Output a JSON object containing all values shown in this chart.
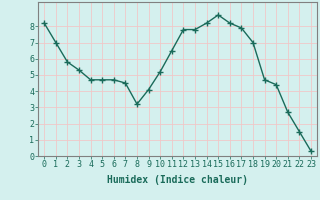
{
  "x": [
    0,
    1,
    2,
    3,
    4,
    5,
    6,
    7,
    8,
    9,
    10,
    11,
    12,
    13,
    14,
    15,
    16,
    17,
    18,
    19,
    20,
    21,
    22,
    23
  ],
  "y": [
    8.2,
    7.0,
    5.8,
    5.3,
    4.7,
    4.7,
    4.7,
    4.5,
    3.2,
    4.1,
    5.2,
    6.5,
    7.8,
    7.8,
    8.2,
    8.7,
    8.2,
    7.9,
    7.0,
    4.7,
    4.4,
    2.7,
    1.5,
    0.3
  ],
  "line_color": "#1a6b5a",
  "marker": "+",
  "marker_size": 4,
  "xlabel": "Humidex (Indice chaleur)",
  "xlim": [
    -0.5,
    23.5
  ],
  "ylim": [
    0,
    9.5
  ],
  "yticks": [
    0,
    1,
    2,
    3,
    4,
    5,
    6,
    7,
    8
  ],
  "xticks": [
    0,
    1,
    2,
    3,
    4,
    5,
    6,
    7,
    8,
    9,
    10,
    11,
    12,
    13,
    14,
    15,
    16,
    17,
    18,
    19,
    20,
    21,
    22,
    23
  ],
  "bg_color": "#d4f0ee",
  "grid_color": "#f0c8c8",
  "axes_color": "#808080",
  "tick_color": "#1a6b5a",
  "label_color": "#1a6b5a",
  "font_size_label": 7,
  "font_size_tick": 6,
  "linewidth": 1.0,
  "markeredgewidth": 1.0
}
